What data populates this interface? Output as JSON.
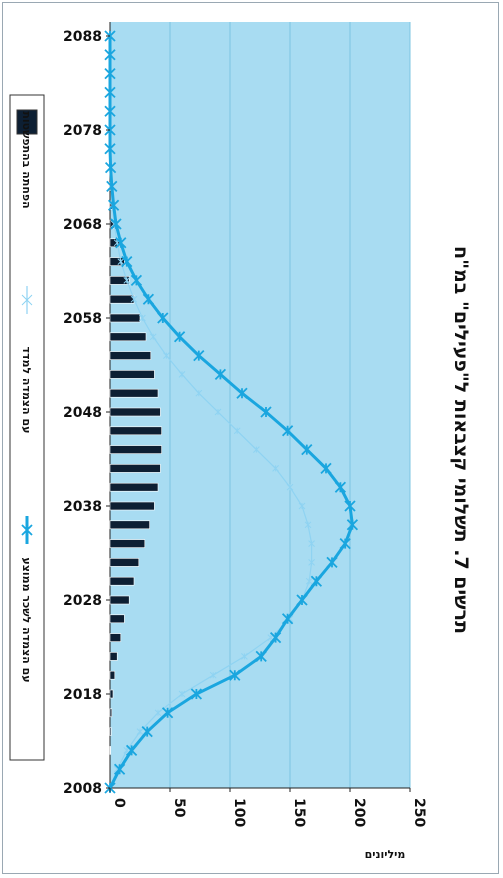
{
  "chart_data": {
    "type": "bar",
    "title": "תרשים 7. תשלומי קצבאות ל\"פעילים\" במ\"ח",
    "ylabel": "מיליונים",
    "orientation": "rotated-90-clockwise",
    "x_tick_labels": [
      "2008",
      "2018",
      "2028",
      "2038",
      "2048",
      "2058",
      "2068",
      "2078",
      "2088"
    ],
    "y_tick_labels": [
      "0",
      "50",
      "100",
      "150",
      "200",
      "250"
    ],
    "xlim": [
      2008,
      2089
    ],
    "ylim": [
      0,
      250
    ],
    "grid": true,
    "legend_position": "left",
    "colors": {
      "plot_bg": "#a8dcf2",
      "bars": "#0d1f33",
      "thick_line": "#1aa6df",
      "thin_line": "#8fd3f2"
    },
    "years": [
      2008,
      2010,
      2012,
      2014,
      2016,
      2018,
      2020,
      2022,
      2024,
      2026,
      2028,
      2030,
      2032,
      2034,
      2036,
      2038,
      2040,
      2042,
      2044,
      2046,
      2048,
      2050,
      2052,
      2054,
      2056,
      2058,
      2060,
      2062,
      2064,
      2066,
      2068,
      2070,
      2072,
      2074,
      2076,
      2078,
      2080,
      2082,
      2084,
      2086,
      2088
    ],
    "series": [
      {
        "name": "הפחתה בהתפשטות",
        "kind": "bar",
        "values": [
          0,
          0,
          0.5,
          1,
          1.5,
          2.5,
          4,
          6,
          9,
          12,
          16,
          20,
          24,
          29,
          33,
          37,
          40,
          42,
          43,
          43,
          42,
          40,
          37,
          34,
          30,
          25,
          20,
          16,
          12,
          8,
          5,
          3,
          2,
          1,
          0.5,
          0,
          0,
          0,
          0,
          0,
          0
        ]
      },
      {
        "name": "עם הצמדה לשכר ממוצע",
        "kind": "line-thick",
        "values": [
          0,
          8,
          18,
          31,
          48,
          72,
          104,
          126,
          138,
          148,
          160,
          172,
          185,
          196,
          202,
          200,
          192,
          180,
          164,
          148,
          130,
          110,
          92,
          74,
          58,
          44,
          32,
          22,
          14,
          9,
          5,
          3,
          1.5,
          0.5,
          0,
          0,
          0,
          0,
          0,
          0,
          0
        ]
      },
      {
        "name": "עם הצמדה למדד",
        "kind": "line-thin",
        "values": [
          0,
          6,
          14,
          25,
          40,
          60,
          86,
          112,
          134,
          150,
          160,
          166,
          168,
          168,
          165,
          160,
          150,
          138,
          122,
          106,
          90,
          74,
          60,
          47,
          36,
          27,
          20,
          14,
          9,
          6,
          3.5,
          2,
          1,
          0.5,
          0,
          0,
          0,
          0,
          0,
          0,
          0
        ]
      }
    ]
  }
}
